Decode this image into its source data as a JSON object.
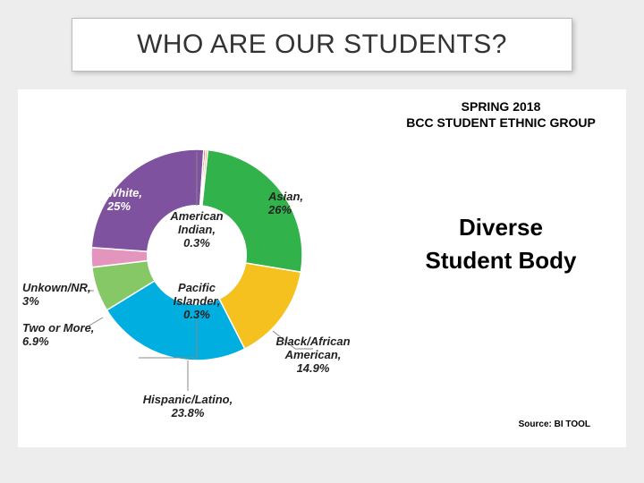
{
  "title": "WHO ARE OUR STUDENTS?",
  "subtitle_line1": "SPRING 2018",
  "subtitle_line2": "BCC STUDENT ETHNIC GROUP",
  "highlight_line1": "Diverse",
  "highlight_line2": "Student Body",
  "source_text": "Source: BI TOOL",
  "chart": {
    "type": "donut",
    "background_color": "#ffffff",
    "inner_radius_ratio": 0.47,
    "label_fontsize": 13,
    "label_color": "#222222",
    "slices": [
      {
        "name": "Asian",
        "pct": 26.0,
        "color": "#32b24a"
      },
      {
        "name": "Black/African American",
        "pct": 14.9,
        "color": "#f5c11e"
      },
      {
        "name": "Hispanic/Latino",
        "pct": 23.8,
        "color": "#00aee0"
      },
      {
        "name": "Two or More",
        "pct": 6.9,
        "color": "#86c766"
      },
      {
        "name": "Unkown/NR",
        "pct": 3.0,
        "color": "#e495bd"
      },
      {
        "name": "White",
        "pct": 25.0,
        "color": "#7f52a0"
      },
      {
        "name": "Pacific Islander",
        "pct": 0.3,
        "color": "#c9302c"
      },
      {
        "name": "American Indian",
        "pct": 0.3,
        "color": "#e9883e"
      }
    ],
    "slice_labels": {
      "asian": {
        "name": "Asian,",
        "pct": "26%"
      },
      "black": {
        "name": "Black/African\nAmerican,",
        "pct": "14.9%"
      },
      "hisp": {
        "name": "Hispanic/Latino,",
        "pct": "23.8%"
      },
      "two": {
        "name": "Two or More,",
        "pct": "6.9%"
      },
      "unk": {
        "name": "Unkown/NR,",
        "pct": "3%"
      },
      "white": {
        "name": "White,",
        "pct": "25%"
      },
      "pac": {
        "name": "Pacific\nIslander,",
        "pct": "0.3%"
      },
      "amind": {
        "name": "American\nIndian,",
        "pct": "0.3%"
      }
    }
  }
}
